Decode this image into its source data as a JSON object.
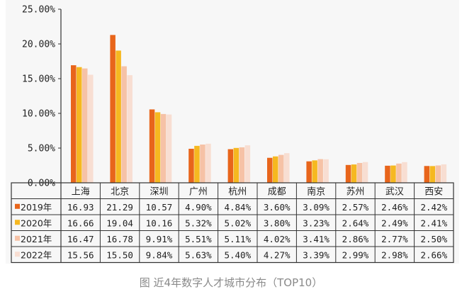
{
  "caption": "图 近4年数字人才城市分布（TOP10）",
  "chart_data": {
    "type": "bar",
    "categories": [
      "上海",
      "北京",
      "深圳",
      "广州",
      "杭州",
      "成都",
      "南京",
      "苏州",
      "武汉",
      "西安"
    ],
    "y_ticks": [
      "0.00%",
      "5.00%",
      "10.00%",
      "15.00%",
      "20.00%",
      "25.00%"
    ],
    "ylim": [
      0,
      25
    ],
    "series": [
      {
        "name": "2019年",
        "color": "#e8651b",
        "values": [
          16.93,
          21.29,
          10.57,
          4.9,
          4.84,
          3.6,
          3.09,
          2.57,
          2.46,
          2.42
        ],
        "labels": [
          "16.93",
          "21.29",
          "10.57",
          "4.90%",
          "4.84%",
          "3.60%",
          "3.09%",
          "2.57%",
          "2.46%",
          "2.42%"
        ]
      },
      {
        "name": "2020年",
        "color": "#f6b820",
        "values": [
          16.66,
          19.04,
          10.16,
          5.32,
          5.02,
          3.8,
          3.23,
          2.64,
          2.49,
          2.41
        ],
        "labels": [
          "16.66",
          "19.04",
          "10.16",
          "5.32%",
          "5.02%",
          "3.80%",
          "3.23%",
          "2.64%",
          "2.49%",
          "2.41%"
        ]
      },
      {
        "name": "2021年",
        "color": "#f6c2a6",
        "values": [
          16.47,
          16.78,
          9.91,
          5.51,
          5.11,
          4.02,
          3.41,
          2.86,
          2.77,
          2.5
        ],
        "labels": [
          "16.47",
          "16.78",
          "9.91%",
          "5.51%",
          "5.11%",
          "4.02%",
          "3.41%",
          "2.86%",
          "2.77%",
          "2.50%"
        ]
      },
      {
        "name": "2022年",
        "color": "#f8ded2",
        "values": [
          15.56,
          15.5,
          9.84,
          5.63,
          5.4,
          4.27,
          3.39,
          2.99,
          2.98,
          2.66
        ],
        "labels": [
          "15.56",
          "15.50",
          "9.84%",
          "5.63%",
          "5.40%",
          "4.27%",
          "3.39%",
          "2.99%",
          "2.98%",
          "2.66%"
        ]
      }
    ]
  }
}
